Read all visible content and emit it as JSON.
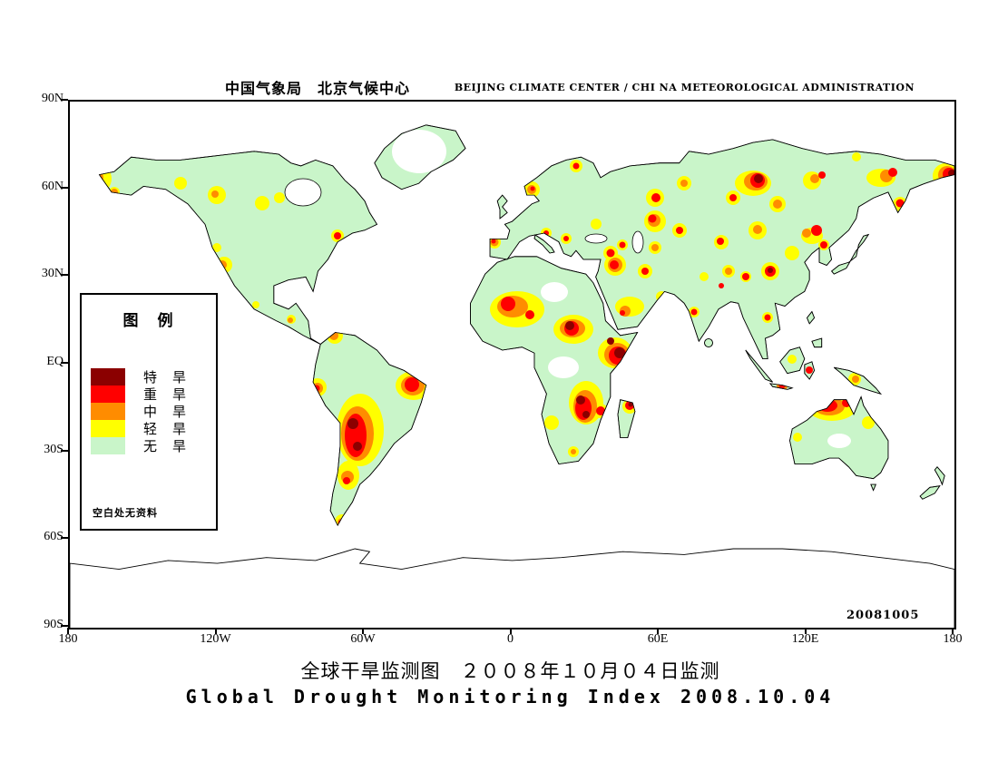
{
  "header": {
    "cn": "中国气象局　北京气候中心",
    "en": "BEIJING CLIMATE CENTER / CHI NA METEOROLOGICAL ADMINISTRATION"
  },
  "map": {
    "lat_labels": [
      "90N",
      "60N",
      "30N",
      "EQ",
      "30S",
      "60S",
      "90S"
    ],
    "lon_labels": [
      "180",
      "120W",
      "60W",
      "0",
      "60E",
      "120E",
      "180"
    ],
    "date_stamp": "20081005"
  },
  "legend": {
    "title": "图　例",
    "items": [
      {
        "label": "特　旱",
        "color": "#8b0000"
      },
      {
        "label": "重　旱",
        "color": "#ff0000"
      },
      {
        "label": "中　旱",
        "color": "#ff8c00"
      },
      {
        "label": "轻　旱",
        "color": "#ffff00"
      },
      {
        "label": "无　旱",
        "color": "#c9f5c9"
      }
    ],
    "note": "空白处无资料"
  },
  "footer": {
    "title_cn": "全球干旱监测图　２００８年１０月０４日监测",
    "title_en": "Global Drought Monitoring Index  2008.10.04"
  },
  "colors": {
    "extreme_drought": "#8b0000",
    "severe_drought": "#ff0000",
    "moderate_drought": "#ff8c00",
    "light_drought": "#ffff00",
    "no_drought": "#c9f5c9",
    "no_data": "#ffffff"
  }
}
